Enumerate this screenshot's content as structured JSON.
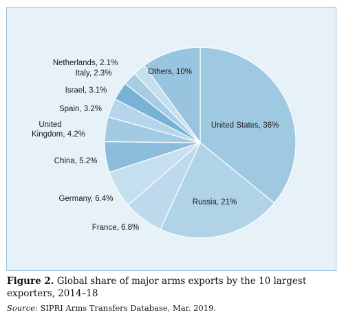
{
  "figure": {
    "label": "Figure 2.",
    "caption": "Global share of major arms exports by the 10 largest exporters, 2014–18",
    "source_label": "Source",
    "source_text": ": SIPRI Arms Transfers Database, Mar. 2019."
  },
  "chart_data": {
    "type": "pie",
    "title": "",
    "slices": [
      {
        "label": "United States, 36%",
        "value": 36,
        "color": "#9fc8e1"
      },
      {
        "label": "Russia, 21%",
        "value": 21,
        "color": "#b1d3e8"
      },
      {
        "label": "France, 6.8%",
        "value": 6.8,
        "color": "#bcdaec"
      },
      {
        "label": "Germany, 6.4%",
        "value": 6.4,
        "color": "#c7e0ef"
      },
      {
        "label": "China, 5.2%",
        "value": 5.2,
        "color": "#8bbdda"
      },
      {
        "label": "United Kingdom, 4.2%",
        "value": 4.2,
        "color": "#a2cae2"
      },
      {
        "label": "Spain, 3.2%",
        "value": 3.2,
        "color": "#b4d5ea"
      },
      {
        "label": "Israel, 3.1%",
        "value": 3.1,
        "color": "#78b2d4"
      },
      {
        "label": "Italy, 2.3%",
        "value": 2.3,
        "color": "#a6cde4"
      },
      {
        "label": "Netherlands, 2.1%",
        "value": 2.1,
        "color": "#c4dfee"
      },
      {
        "label": "Others, 10%",
        "value": 10,
        "color": "#98c4df"
      }
    ],
    "legend": "none"
  }
}
